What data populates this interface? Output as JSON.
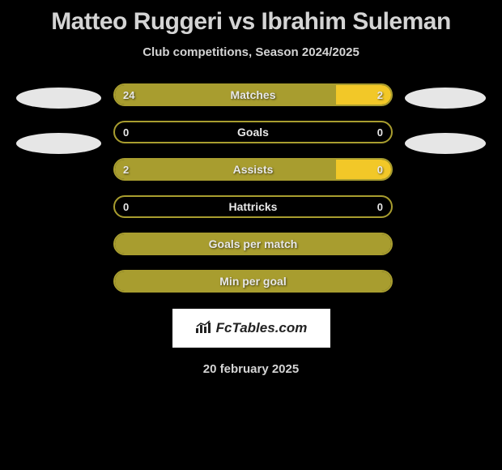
{
  "title": "Matteo Ruggeri vs Ibrahim Suleman",
  "subtitle": "Club competitions, Season 2024/2025",
  "colors": {
    "background": "#000000",
    "player1_fill": "#a89d2f",
    "player1_border": "#a89d2f",
    "player2_fill": "#f2c828",
    "empty_border": "#a89d2f",
    "text": "#e8e8e8"
  },
  "stats": [
    {
      "label": "Matches",
      "left_value": "24",
      "right_value": "2",
      "left_pct": 80,
      "right_pct": 20,
      "show_values": true
    },
    {
      "label": "Goals",
      "left_value": "0",
      "right_value": "0",
      "left_pct": 0,
      "right_pct": 0,
      "show_values": true
    },
    {
      "label": "Assists",
      "left_value": "2",
      "right_value": "0",
      "left_pct": 80,
      "right_pct": 20,
      "show_values": true
    },
    {
      "label": "Hattricks",
      "left_value": "0",
      "right_value": "0",
      "left_pct": 0,
      "right_pct": 0,
      "show_values": true
    },
    {
      "label": "Goals per match",
      "left_value": "",
      "right_value": "",
      "left_pct": 100,
      "right_pct": 0,
      "show_values": false,
      "full_fill": true
    },
    {
      "label": "Min per goal",
      "left_value": "",
      "right_value": "",
      "left_pct": 100,
      "right_pct": 0,
      "show_values": false,
      "full_fill": true
    }
  ],
  "logo_text": "FcTables.com",
  "date": "20 february 2025"
}
